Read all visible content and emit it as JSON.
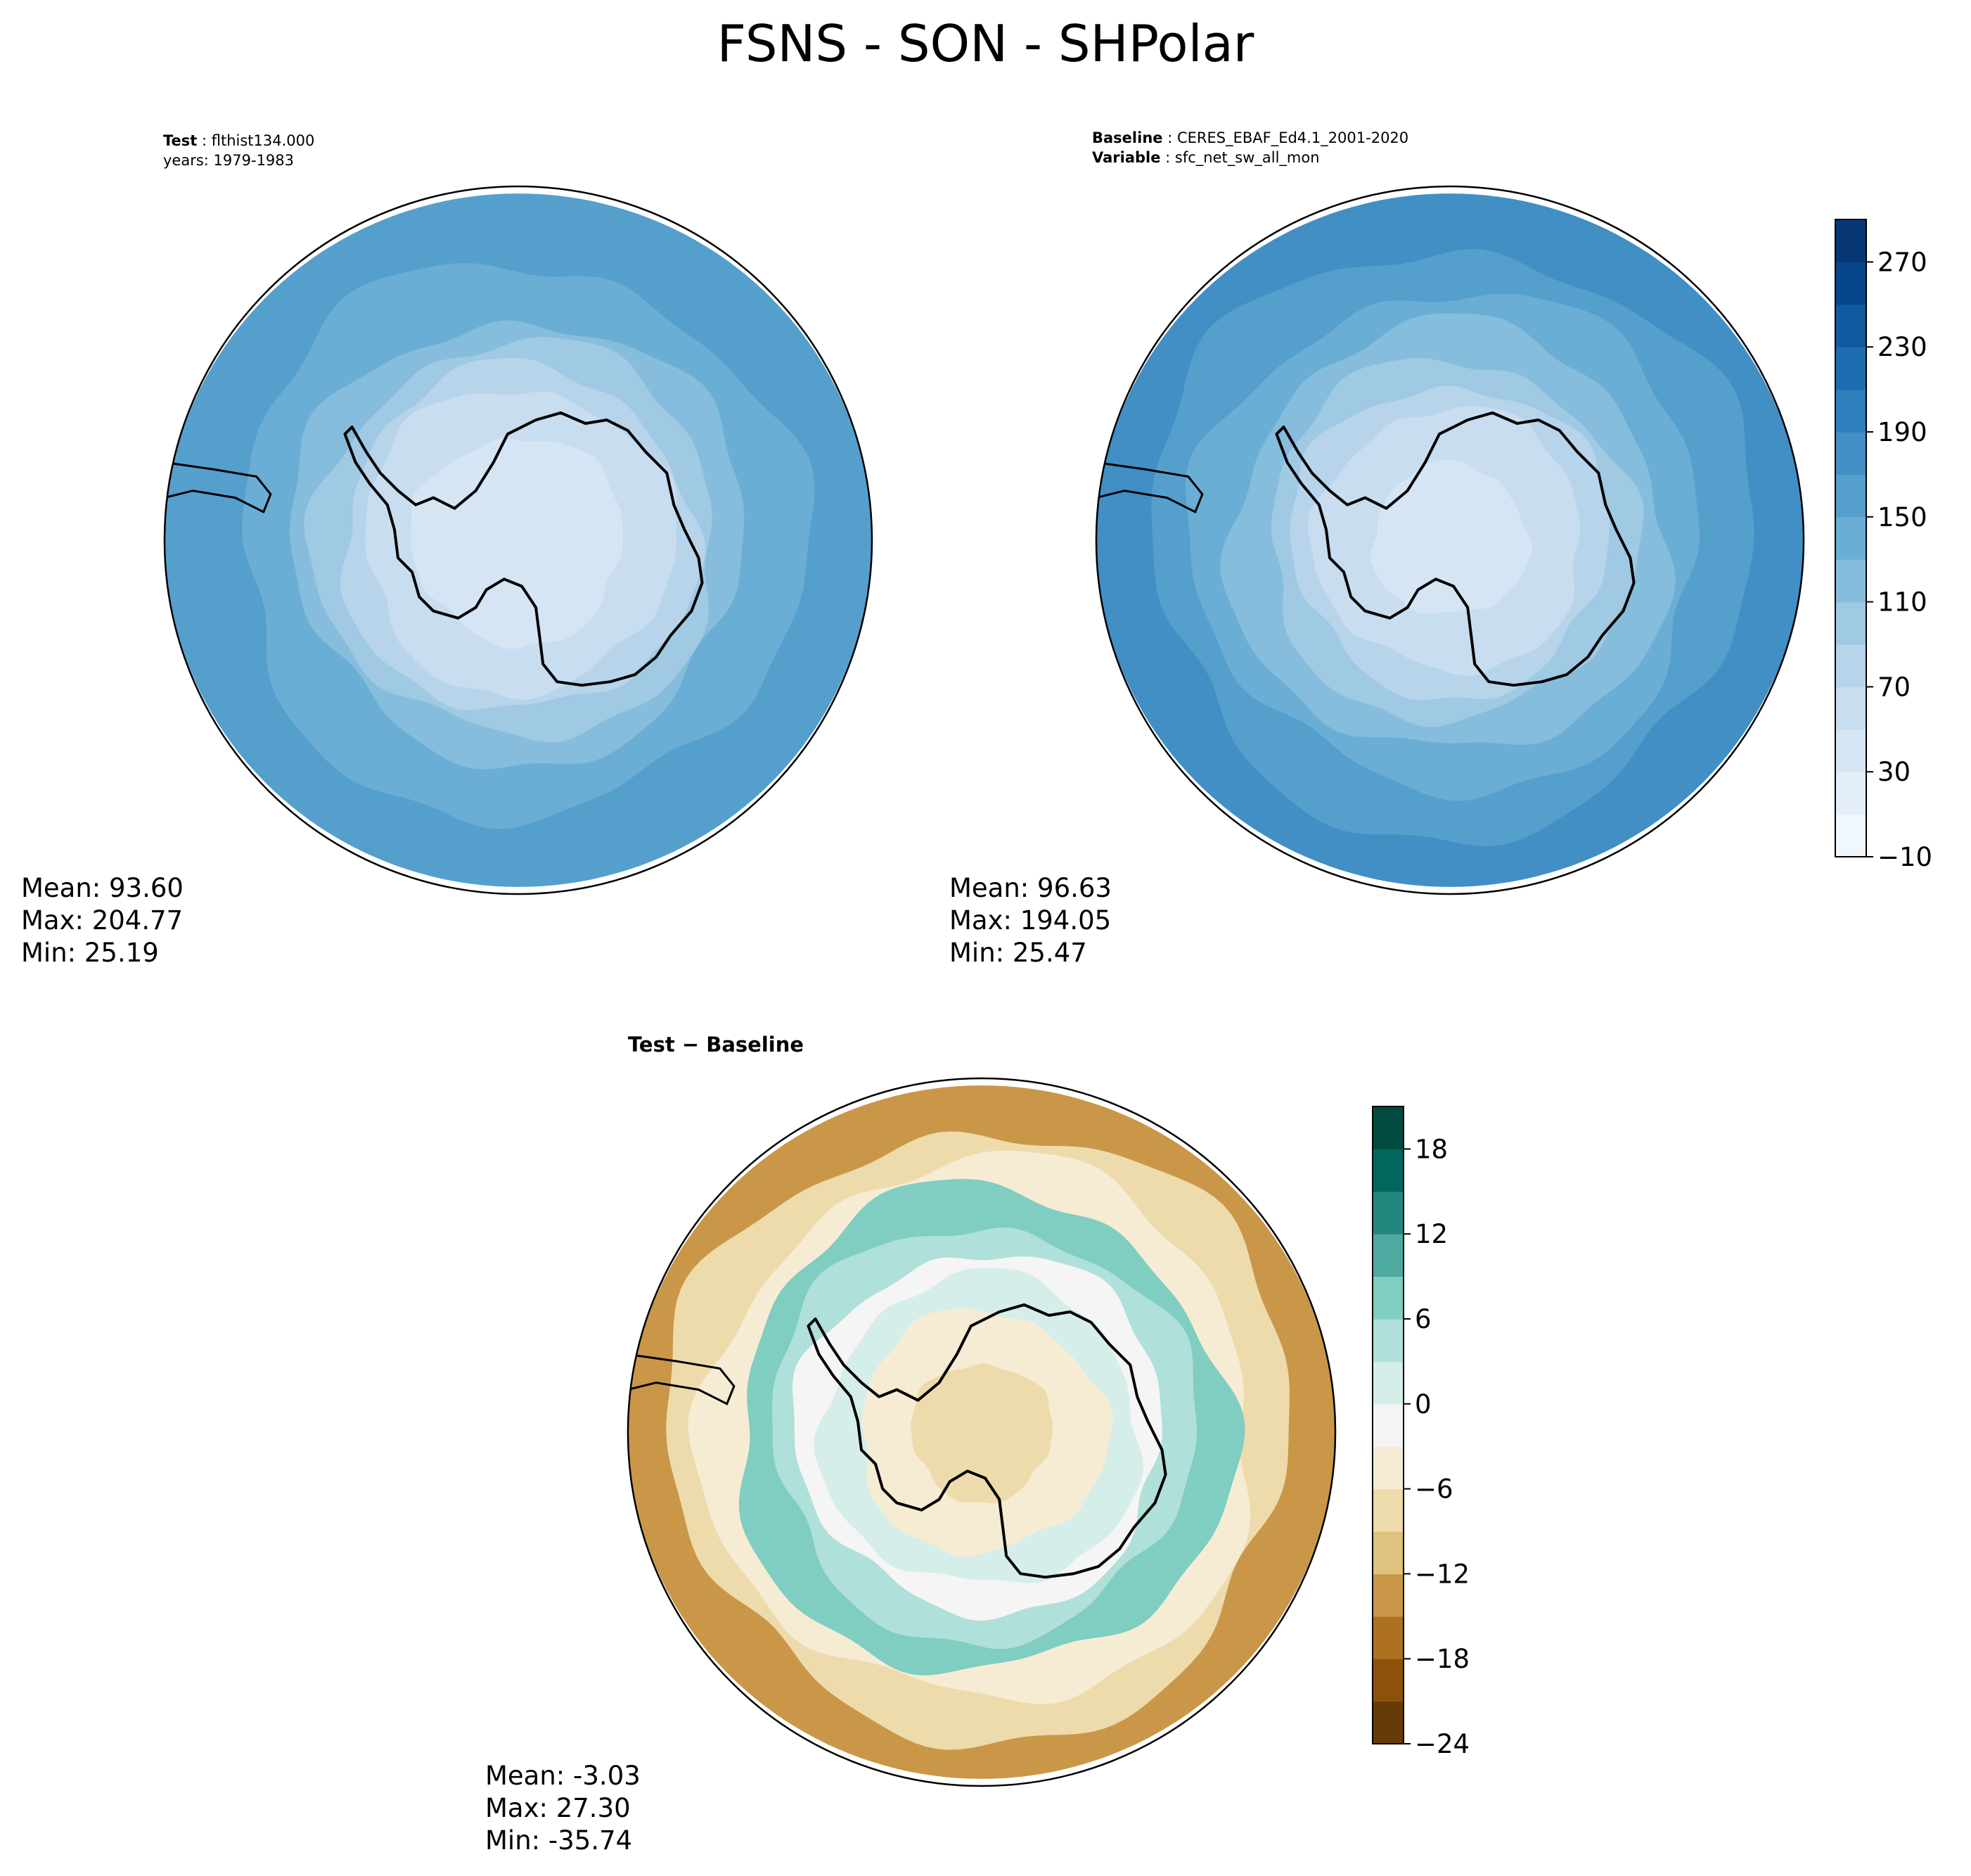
{
  "title": "FSNS - SON - SHPolar",
  "chart_data": [
    {
      "type": "heatmap",
      "projection": "south-polar-stereographic",
      "caption": {
        "label": "Test",
        "value": "flthist134.000",
        "line2": "years: 1979-1983"
      },
      "stats": {
        "mean": "Mean: 93.60",
        "max": "Max: 204.77",
        "min": "Min: 25.19"
      },
      "levels": [
        -10,
        10,
        30,
        50,
        70,
        90,
        110,
        130,
        150,
        170,
        190,
        210,
        230,
        250,
        270,
        290
      ],
      "colorbar_ticks": [
        "270",
        "230",
        "190",
        "150",
        "110",
        "70",
        "30",
        "−10"
      ],
      "contours": [
        {
          "r": 1.0,
          "value": 150
        },
        {
          "r": 0.8,
          "value": 130
        },
        {
          "r": 0.64,
          "value": 110
        },
        {
          "r": 0.57,
          "value": 90
        },
        {
          "r": 0.5,
          "value": 70
        },
        {
          "r": 0.44,
          "value": 50
        },
        {
          "r": 0.3,
          "value": 30
        }
      ]
    },
    {
      "type": "heatmap",
      "projection": "south-polar-stereographic",
      "caption": {
        "label": "Baseline",
        "value": "CERES_EBAF_Ed4.1_2001-2020",
        "label2": "Variable",
        "value2": "sfc_net_sw_all_mon"
      },
      "stats": {
        "mean": "Mean: 96.63",
        "max": "Max: 194.05",
        "min": "Min: 25.47"
      },
      "levels": [
        -10,
        10,
        30,
        50,
        70,
        90,
        110,
        130,
        150,
        170,
        190,
        210,
        230,
        250,
        270,
        290
      ],
      "colorbar_ticks": [
        "270",
        "230",
        "190",
        "150",
        "110",
        "70",
        "30",
        "−10"
      ],
      "contours": [
        {
          "r": 1.0,
          "value": 170
        },
        {
          "r": 0.85,
          "value": 150
        },
        {
          "r": 0.72,
          "value": 130
        },
        {
          "r": 0.62,
          "value": 110
        },
        {
          "r": 0.52,
          "value": 90
        },
        {
          "r": 0.45,
          "value": 70
        },
        {
          "r": 0.38,
          "value": 50
        },
        {
          "r": 0.22,
          "value": 30
        }
      ]
    },
    {
      "type": "heatmap",
      "projection": "south-polar-stereographic",
      "caption": {
        "label": "Test",
        "value": "Baseline",
        "separator": " − "
      },
      "stats": {
        "mean": "Mean: -3.03",
        "max": "Max: 27.30",
        "min": "Min: -35.74"
      },
      "levels": [
        -24,
        -21,
        -18,
        -15,
        -12,
        -9,
        -6,
        -3,
        0,
        3,
        6,
        9,
        12,
        15,
        18,
        21
      ],
      "colorbar_ticks": [
        "18",
        "12",
        "6",
        "0",
        "−6",
        "−12",
        "−18",
        "−24"
      ],
      "contours": [
        {
          "r": 1.0,
          "value": -14
        },
        {
          "r": 0.88,
          "value": -9
        },
        {
          "r": 0.78,
          "value": -4
        },
        {
          "r": 0.7,
          "value": 8
        },
        {
          "r": 0.6,
          "value": 3
        },
        {
          "r": 0.52,
          "value": -2
        },
        {
          "r": 0.45,
          "value": 2
        },
        {
          "r": 0.35,
          "value": -5
        },
        {
          "r": 0.2,
          "value": -8
        }
      ]
    }
  ],
  "colors": {
    "blues": [
      "#f7fbff",
      "#e3eef9",
      "#d0e1f2",
      "#b7d4ea",
      "#94c4df",
      "#6aaed6",
      "#4a98c9",
      "#2e7ebc",
      "#1764ab",
      "#08468b",
      "#08306b"
    ],
    "brbg": [
      "#543005",
      "#8c510a",
      "#bf812d",
      "#dfc27d",
      "#f6e8c3",
      "#f5f5f5",
      "#c7eae5",
      "#80cdc1",
      "#35978f",
      "#01665e",
      "#003c30"
    ]
  }
}
